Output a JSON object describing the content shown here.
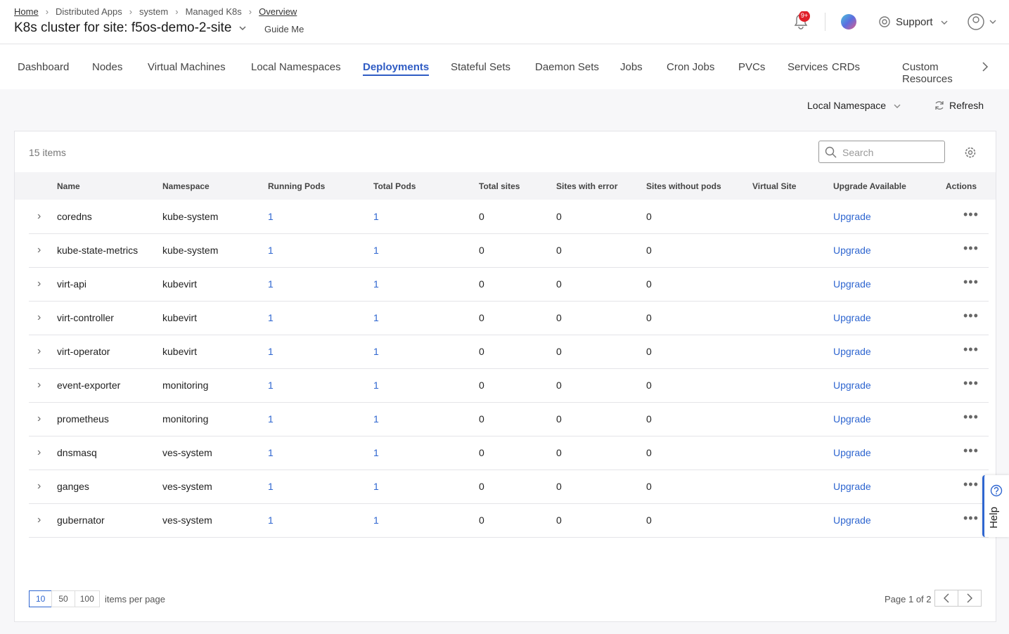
{
  "breadcrumbs": [
    "Home",
    "Distributed Apps",
    "system",
    "Managed K8s",
    "Overview"
  ],
  "title": "K8s cluster for site: f5os-demo-2-site",
  "guide_me": "Guide Me",
  "notification_badge": "9+",
  "support": "Support",
  "tabs": [
    "Dashboard",
    "Nodes",
    "Virtual Machines",
    "Local Namespaces",
    "Deployments",
    "Stateful Sets",
    "Daemon Sets",
    "Jobs",
    "Cron Jobs",
    "PVCs",
    "Services",
    "CRDs",
    "Custom Resources"
  ],
  "toolbar": {
    "namespace_filter": "Local Namespace",
    "refresh": "Refresh"
  },
  "table": {
    "count": "15 items",
    "search_placeholder": "Search",
    "columns": [
      "Name",
      "Namespace",
      "Running Pods",
      "Total Pods",
      "Total sites",
      "Sites with error",
      "Sites without pods",
      "Virtual Site",
      "Upgrade Available",
      "Actions"
    ],
    "rows": [
      {
        "name": "coredns",
        "namespace": "kube-system",
        "running_pods": 1,
        "total_pods": 1,
        "total_sites": 0,
        "sites_with_error": 0,
        "sites_without_pods": 0,
        "upgrade": "Upgrade"
      },
      {
        "name": "kube-state-metrics",
        "namespace": "kube-system",
        "running_pods": 1,
        "total_pods": 1,
        "total_sites": 0,
        "sites_with_error": 0,
        "sites_without_pods": 0,
        "upgrade": "Upgrade"
      },
      {
        "name": "virt-api",
        "namespace": "kubevirt",
        "running_pods": 1,
        "total_pods": 1,
        "total_sites": 0,
        "sites_with_error": 0,
        "sites_without_pods": 0,
        "upgrade": "Upgrade"
      },
      {
        "name": "virt-controller",
        "namespace": "kubevirt",
        "running_pods": 1,
        "total_pods": 1,
        "total_sites": 0,
        "sites_with_error": 0,
        "sites_without_pods": 0,
        "upgrade": "Upgrade"
      },
      {
        "name": "virt-operator",
        "namespace": "kubevirt",
        "running_pods": 1,
        "total_pods": 1,
        "total_sites": 0,
        "sites_with_error": 0,
        "sites_without_pods": 0,
        "upgrade": "Upgrade"
      },
      {
        "name": "event-exporter",
        "namespace": "monitoring",
        "running_pods": 1,
        "total_pods": 1,
        "total_sites": 0,
        "sites_with_error": 0,
        "sites_without_pods": 0,
        "upgrade": "Upgrade"
      },
      {
        "name": "prometheus",
        "namespace": "monitoring",
        "running_pods": 1,
        "total_pods": 1,
        "total_sites": 0,
        "sites_with_error": 0,
        "sites_without_pods": 0,
        "upgrade": "Upgrade"
      },
      {
        "name": "dnsmasq",
        "namespace": "ves-system",
        "running_pods": 1,
        "total_pods": 1,
        "total_sites": 0,
        "sites_with_error": 0,
        "sites_without_pods": 0,
        "upgrade": "Upgrade"
      },
      {
        "name": "ganges",
        "namespace": "ves-system",
        "running_pods": 1,
        "total_pods": 1,
        "total_sites": 0,
        "sites_with_error": 0,
        "sites_without_pods": 0,
        "upgrade": "Upgrade"
      },
      {
        "name": "gubernator",
        "namespace": "ves-system",
        "running_pods": 1,
        "total_pods": 1,
        "total_sites": 0,
        "sites_with_error": 0,
        "sites_without_pods": 0,
        "upgrade": "Upgrade"
      }
    ]
  },
  "pagination": {
    "page_sizes": [
      10,
      50,
      100
    ],
    "items_per_page": "items per page",
    "page_info": "Page 1 of 2"
  },
  "help": "Help"
}
